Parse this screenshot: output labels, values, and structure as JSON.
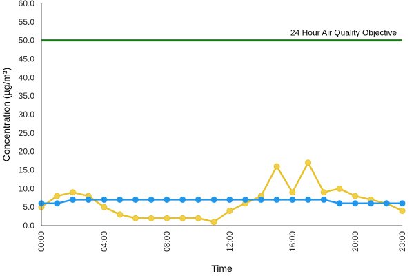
{
  "chart_data": {
    "type": "line",
    "xlabel": "Time",
    "ylabel": "Concentration (µg/m³)",
    "ylim": [
      0,
      60
    ],
    "y_ticks": [
      "0.0",
      "5.0",
      "10.0",
      "15.0",
      "20.0",
      "25.0",
      "30.0",
      "35.0",
      "40.0",
      "45.0",
      "50.0",
      "55.0",
      "60.0"
    ],
    "x": [
      0,
      1,
      2,
      3,
      4,
      5,
      6,
      7,
      8,
      9,
      10,
      11,
      12,
      13,
      14,
      15,
      16,
      17,
      18,
      19,
      20,
      21,
      22,
      23
    ],
    "x_tick_labels": [
      {
        "x": 0,
        "label": "00:00"
      },
      {
        "x": 4,
        "label": "04:00"
      },
      {
        "x": 8,
        "label": "08:00"
      },
      {
        "x": 12,
        "label": "12:00"
      },
      {
        "x": 16,
        "label": "16:00"
      },
      {
        "x": 20,
        "label": "20:00"
      },
      {
        "x": 23,
        "label": "23:00"
      }
    ],
    "grid": false,
    "legend": "none",
    "reference_line": {
      "value": 50,
      "label": "24 Hour Air Quality Objective",
      "color": "#1a7a1a"
    },
    "series": [
      {
        "color": "#e8c12a",
        "marker_fill": "#f0d04a",
        "values": [
          5,
          8,
          9,
          8,
          5,
          3,
          2,
          2,
          2,
          2,
          2,
          1,
          4,
          6,
          8,
          16,
          9,
          17,
          9,
          10,
          8,
          7,
          6,
          4
        ]
      },
      {
        "color": "#2196e8",
        "marker_fill": "#2196e8",
        "values": [
          6,
          6,
          7,
          7,
          7,
          7,
          7,
          7,
          7,
          7,
          7,
          7,
          7,
          7,
          7,
          7,
          7,
          7,
          7,
          6,
          6,
          6,
          6,
          6
        ]
      }
    ]
  }
}
